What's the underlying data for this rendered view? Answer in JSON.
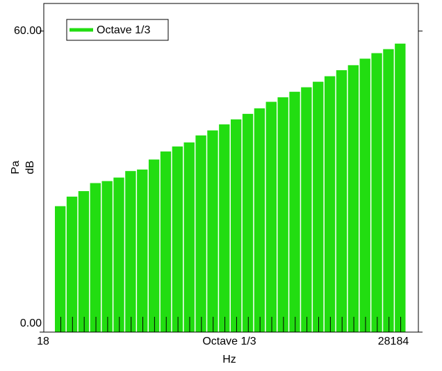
{
  "chart_data": {
    "type": "bar",
    "ylabel_lines": [
      "Pa",
      "dB"
    ],
    "xlabel": "Hz",
    "x_center_label": "Octave 1/3",
    "x_start_label": "18",
    "x_end_label": "28184",
    "legend": "top-left",
    "categories": [
      null,
      null,
      null,
      null,
      null,
      null,
      null,
      null,
      null,
      null,
      null,
      null,
      null,
      null,
      null,
      null,
      null,
      null,
      null,
      null,
      null,
      null,
      null,
      null,
      null,
      null,
      null,
      null,
      null,
      null
    ],
    "series": [
      {
        "name": "Octave 1/3",
        "color": "#22dd11",
        "values": [
          25.1,
          27.0,
          28.1,
          29.7,
          30.1,
          30.8,
          32.1,
          32.4,
          34.4,
          36.0,
          37.0,
          37.8,
          39.2,
          40.2,
          41.4,
          42.4,
          43.5,
          44.6,
          45.9,
          46.8,
          47.9,
          48.8,
          49.9,
          51.0,
          52.2,
          53.2,
          54.5,
          55.6,
          56.4,
          57.5
        ]
      }
    ],
    "ylim": [
      0,
      65.5
    ],
    "yticks": [
      {
        "value": 0,
        "label": "0.00"
      },
      {
        "value": 60,
        "label": "60.00"
      }
    ]
  }
}
